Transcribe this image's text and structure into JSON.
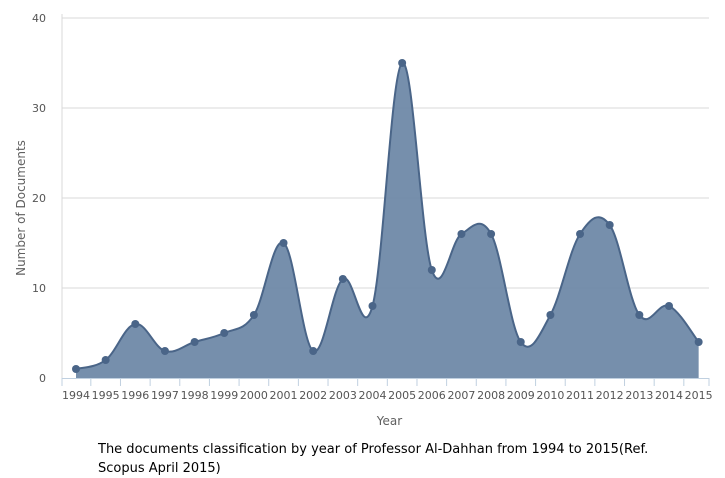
{
  "chart_data": {
    "type": "area",
    "categories": [
      "1994",
      "1995",
      "1996",
      "1997",
      "1998",
      "1999",
      "2000",
      "2001",
      "2002",
      "2003",
      "2004",
      "2005",
      "2006",
      "2007",
      "2008",
      "2009",
      "2010",
      "2011",
      "2012",
      "2013",
      "2014",
      "2015"
    ],
    "series": [
      {
        "values": [
          1,
          2,
          6,
          3,
          4,
          5,
          7,
          15,
          3,
          11,
          8,
          35,
          12,
          16,
          16,
          4,
          7,
          16,
          17,
          7,
          8,
          4
        ]
      }
    ],
    "xlabel": "Year",
    "ylabel": "Number of Documents",
    "ylim": [
      0,
      40
    ],
    "yticks": [
      0,
      10,
      20,
      30,
      40
    ],
    "grid": true,
    "colors": {
      "fill": "#6f89a8",
      "line": "#4a6588",
      "marker": "#4a6588",
      "grid": "#d8d8d8",
      "axis": "#c0d0e0"
    }
  },
  "caption": "The documents classification by year of Professor Al-Dahhan from 1994 to 2015(Ref. Scopus April 2015)"
}
